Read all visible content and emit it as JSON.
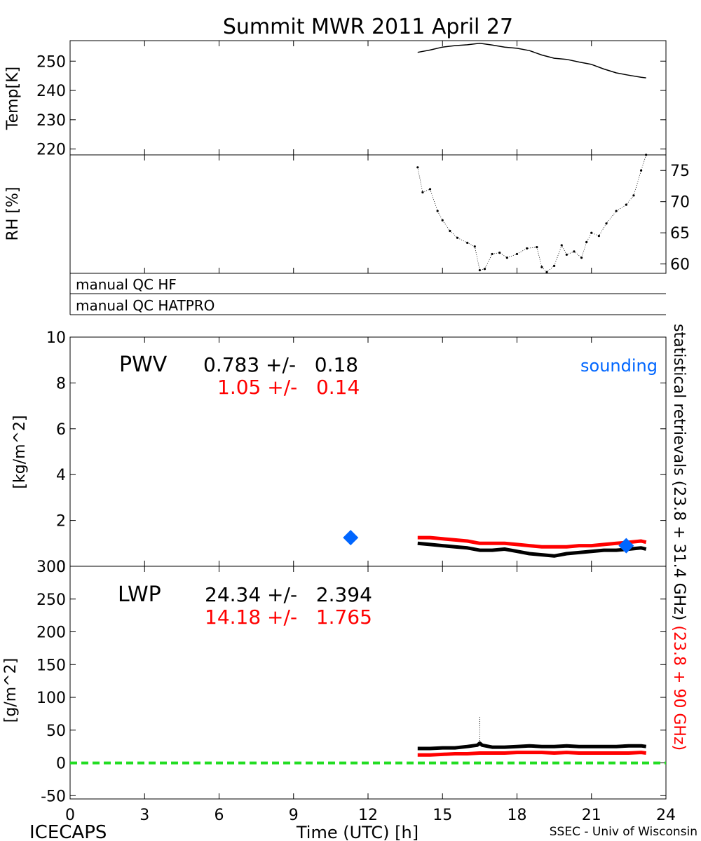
{
  "title": "Summit MWR 2011 April 27",
  "footer": {
    "left": "ICECAPS",
    "center": "Time (UTC) [h]",
    "right": "SSEC - Univ of Wisconsin"
  },
  "colors": {
    "hf": "#000000",
    "hatpro": "#ff0000",
    "sounding": "#0066ff",
    "zero_line": "#22dd22"
  },
  "chart_data": [
    {
      "id": "temp",
      "type": "line",
      "ylabel": "Temp[K]",
      "xlim": [
        0,
        24
      ],
      "ylim": [
        218,
        257
      ],
      "yticks": [
        220,
        230,
        240,
        250
      ],
      "series": [
        {
          "color": "#000000",
          "x": [
            14.0,
            14.5,
            15.0,
            15.5,
            16.0,
            16.5,
            17.0,
            17.5,
            18.0,
            18.5,
            19.0,
            19.5,
            20.0,
            20.5,
            21.0,
            21.5,
            22.0,
            22.5,
            23.0,
            23.2
          ],
          "y": [
            253.0,
            253.8,
            254.8,
            255.3,
            255.6,
            256.1,
            255.5,
            254.8,
            254.4,
            253.6,
            252.1,
            251.0,
            250.6,
            249.7,
            248.9,
            247.3,
            246.0,
            245.2,
            244.5,
            244.3
          ]
        }
      ]
    },
    {
      "id": "rh",
      "type": "scatter",
      "ylabel": "RH [%]",
      "xlim": [
        0,
        24
      ],
      "ylim": [
        58.5,
        77.5
      ],
      "yticks": [
        60,
        65,
        70,
        75
      ],
      "series": [
        {
          "color": "#000000",
          "x": [
            14.0,
            14.2,
            14.5,
            14.8,
            15.0,
            15.3,
            15.6,
            16.0,
            16.3,
            16.5,
            16.7,
            17.0,
            17.3,
            17.6,
            18.0,
            18.4,
            18.8,
            19.0,
            19.2,
            19.5,
            19.8,
            20.0,
            20.3,
            20.6,
            20.8,
            21.0,
            21.3,
            21.6,
            22.0,
            22.4,
            22.7,
            23.0,
            23.2
          ],
          "y": [
            75.5,
            71.5,
            72.0,
            68.5,
            67.0,
            65.3,
            64.2,
            63.4,
            62.8,
            59.0,
            59.2,
            61.6,
            61.8,
            61.0,
            61.6,
            62.5,
            62.7,
            59.5,
            58.7,
            59.7,
            63.0,
            61.5,
            62.0,
            61.0,
            63.5,
            65.0,
            64.5,
            66.5,
            68.5,
            69.5,
            71.0,
            75.0,
            77.5
          ]
        }
      ]
    },
    {
      "id": "qc",
      "type": "table",
      "rows": [
        "manual QC HF",
        "manual QC HATPRO"
      ]
    },
    {
      "id": "pwv",
      "type": "line",
      "ylabel": "[kg/m^2]",
      "xlim": [
        0,
        24
      ],
      "ylim": [
        0,
        10
      ],
      "yticks": [
        0,
        2,
        4,
        6,
        8,
        10
      ],
      "annotations": {
        "name": "PWV",
        "hf_stat": "0.783 +/-   0.18",
        "hatpro_stat": "1.05 +/-   0.14",
        "sounding_label": "sounding"
      },
      "series": [
        {
          "color": "#000000",
          "x": [
            14.0,
            14.5,
            15.0,
            15.5,
            16.0,
            16.5,
            17.0,
            17.5,
            18.0,
            18.5,
            19.0,
            19.5,
            20.0,
            20.5,
            21.0,
            21.5,
            22.0,
            22.5,
            23.0,
            23.2
          ],
          "y": [
            1.0,
            0.95,
            0.9,
            0.85,
            0.8,
            0.7,
            0.7,
            0.75,
            0.65,
            0.55,
            0.5,
            0.45,
            0.55,
            0.6,
            0.65,
            0.7,
            0.7,
            0.75,
            0.8,
            0.75
          ]
        },
        {
          "color": "#ff0000",
          "x": [
            14.0,
            14.5,
            15.0,
            15.5,
            16.0,
            16.5,
            17.0,
            17.5,
            18.0,
            18.5,
            19.0,
            19.5,
            20.0,
            20.5,
            21.0,
            21.5,
            22.0,
            22.5,
            23.0,
            23.2
          ],
          "y": [
            1.25,
            1.25,
            1.2,
            1.15,
            1.1,
            1.0,
            1.0,
            1.0,
            0.95,
            0.9,
            0.85,
            0.85,
            0.85,
            0.9,
            0.9,
            0.95,
            1.0,
            1.05,
            1.1,
            1.05
          ]
        }
      ],
      "sounding": {
        "x": [
          11.3,
          22.4
        ],
        "y": [
          1.25,
          0.9
        ]
      }
    },
    {
      "id": "lwp",
      "type": "line",
      "ylabel": "[g/m^2]",
      "xlim": [
        0,
        24
      ],
      "xticks": [
        0,
        3,
        6,
        9,
        12,
        15,
        18,
        21,
        24
      ],
      "ylim": [
        -55,
        300
      ],
      "yticks": [
        -50,
        0,
        50,
        100,
        150,
        200,
        250,
        300
      ],
      "annotations": {
        "name": "LWP",
        "hf_stat": "24.34 +/-   2.394",
        "hatpro_stat": "14.18 +/-   1.765"
      },
      "series": [
        {
          "color": "#000000",
          "x": [
            14.0,
            14.5,
            15.0,
            15.5,
            16.0,
            16.4,
            16.5,
            16.6,
            17.0,
            17.5,
            18.0,
            18.5,
            19.0,
            19.5,
            20.0,
            20.5,
            21.0,
            21.5,
            22.0,
            22.5,
            23.0,
            23.2
          ],
          "y": [
            22,
            22,
            23,
            23,
            25,
            27,
            30,
            27,
            24,
            24,
            25,
            26,
            25,
            25,
            26,
            25,
            25,
            25,
            25,
            26,
            26,
            25
          ]
        },
        {
          "color": "#ff0000",
          "x": [
            14.0,
            14.5,
            15.0,
            15.5,
            16.0,
            16.5,
            17.0,
            17.5,
            18.0,
            18.5,
            19.0,
            19.5,
            20.0,
            20.5,
            21.0,
            21.5,
            22.0,
            22.5,
            23.0,
            23.2
          ],
          "y": [
            12,
            12,
            13,
            14,
            14,
            15,
            15,
            15,
            16,
            16,
            16,
            15,
            16,
            15,
            15,
            15,
            15,
            15,
            16,
            15
          ]
        }
      ],
      "zero_line": 0,
      "spike": {
        "x": 16.5,
        "y": 70
      }
    }
  ],
  "right_label": {
    "black": "statistical retrievals (23.8 + 31.4 GHz)",
    "red": "(23.8 + 90 GHz)"
  }
}
